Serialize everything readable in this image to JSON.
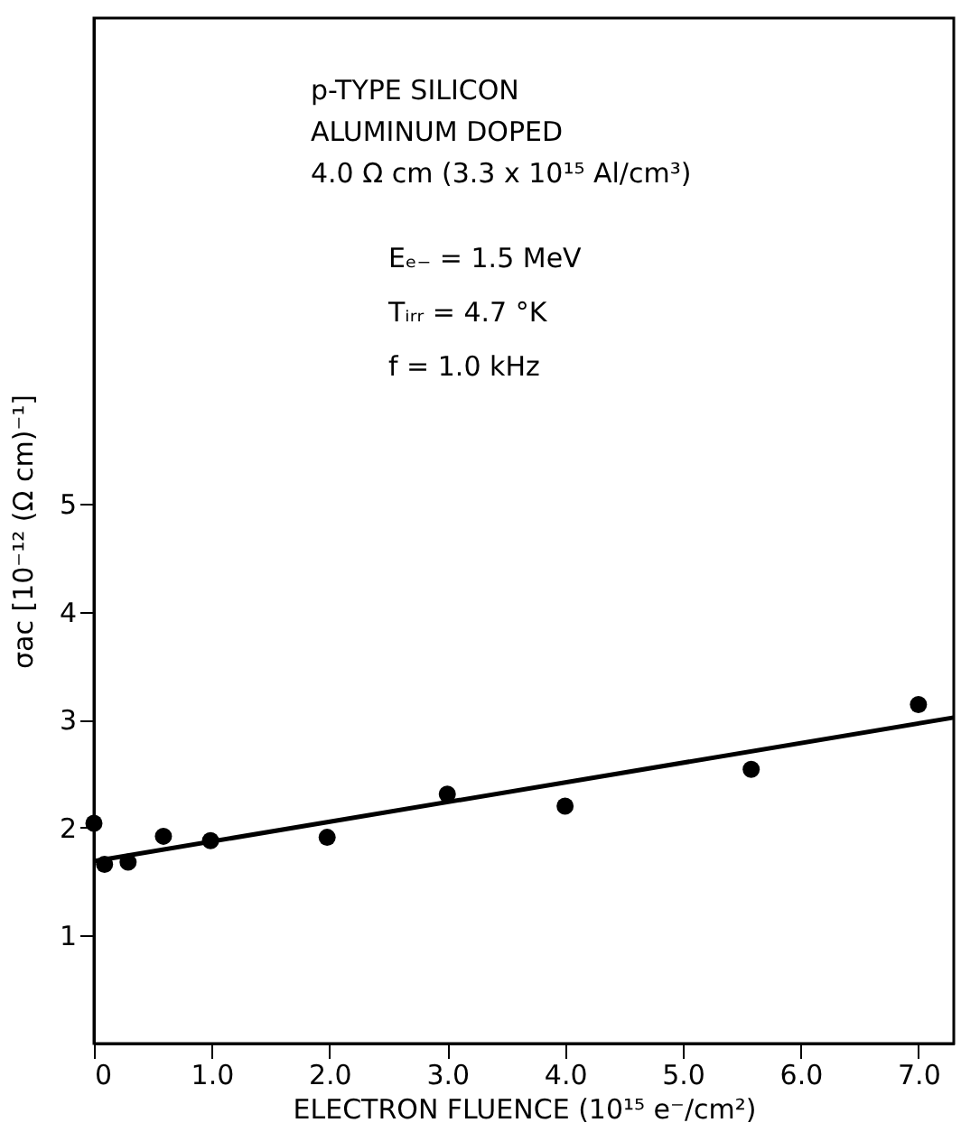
{
  "chart_data": {
    "type": "scatter",
    "xlabel": "ELECTRON FLUENCE (10¹⁵ e⁻/cm²)",
    "ylabel": "σac [10⁻¹² (Ω cm)⁻¹]",
    "annotations": [
      "p-TYPE SILICON",
      "ALUMINUM DOPED",
      "4.0 Ω  cm (3.3 x 10¹⁵ Al/cm³)",
      "Eₑ₋ = 1.5 MeV",
      "Tᵢᵣᵣ = 4.7 °K",
      "f = 1.0 kHz"
    ],
    "x": [
      0,
      0.09,
      0.29,
      0.59,
      0.99,
      1.98,
      3.0,
      4.0,
      5.58,
      7.0
    ],
    "series": [
      {
        "color": "#000000",
        "marker": "circle",
        "values": [
          2.04,
          1.66,
          1.68,
          1.92,
          1.88,
          1.91,
          2.31,
          2.2,
          2.54,
          3.14
        ]
      },
      {
        "type": "line",
        "color": "#000000",
        "x": [
          0,
          7.3
        ],
        "values": [
          1.69,
          3.02
        ]
      }
    ],
    "xlim": [
      0,
      7.3
    ],
    "xticks": [
      {
        "value": 0,
        "label": "0"
      },
      {
        "value": 1,
        "label": "1.0"
      },
      {
        "value": 2,
        "label": "2.0"
      },
      {
        "value": 3,
        "label": "3.0"
      },
      {
        "value": 4,
        "label": "4.0"
      },
      {
        "value": 5,
        "label": "5.0"
      },
      {
        "value": 6,
        "label": "6.0"
      },
      {
        "value": 7,
        "label": "7.0"
      }
    ],
    "ylim": [
      0,
      9.5
    ],
    "yticks": [
      1,
      2,
      3,
      4,
      5
    ],
    "grid": false
  }
}
